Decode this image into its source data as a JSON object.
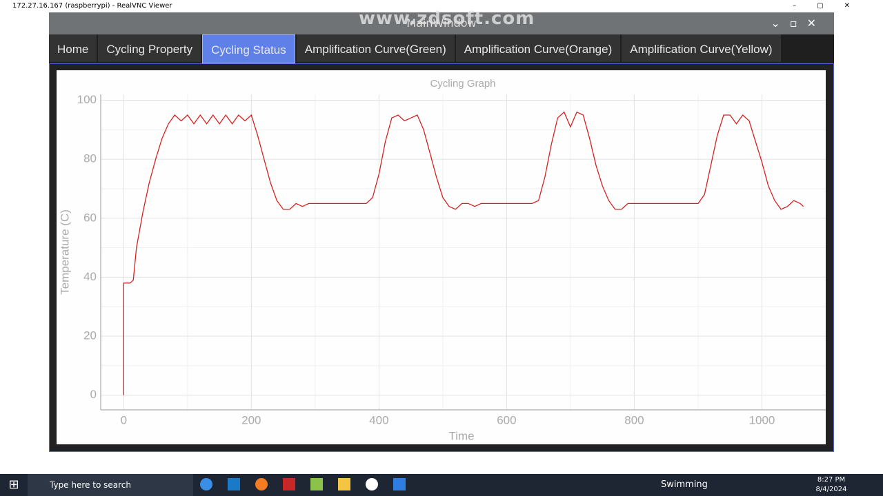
{
  "window_title": "172.27.16.167 (raspberrypi) - RealVNC Viewer",
  "app_title": "MainWindow",
  "watermark": "www.zdsoft.com",
  "tabs": [
    "Home",
    "Cycling Property",
    "Cycling Status",
    "Amplification Curve(Green)",
    "Amplification Curve(Orange)",
    "Amplification Curve(Yellow)"
  ],
  "active_tab": 2,
  "taskbar": {
    "search": "Type here to search",
    "weather": "Swimming",
    "time": "8:27 PM",
    "date": "8/4/2024"
  },
  "chart_data": {
    "type": "line",
    "title": "Cycling Graph",
    "x_label": "Time",
    "y_label": "Temperature (C)",
    "x": [
      0,
      0,
      10,
      15,
      20,
      30,
      40,
      50,
      60,
      70,
      80,
      90,
      100,
      110,
      120,
      130,
      140,
      150,
      160,
      170,
      180,
      190,
      200,
      210,
      220,
      230,
      240,
      250,
      260,
      270,
      280,
      290,
      300,
      320,
      340,
      360,
      380,
      390,
      400,
      410,
      420,
      430,
      440,
      450,
      460,
      470,
      480,
      490,
      500,
      510,
      520,
      530,
      540,
      550,
      560,
      580,
      600,
      620,
      640,
      650,
      660,
      670,
      680,
      690,
      700,
      710,
      720,
      730,
      740,
      750,
      760,
      770,
      780,
      790,
      800,
      820,
      840,
      860,
      880,
      900,
      910,
      920,
      930,
      940,
      950,
      960,
      970,
      980,
      990,
      1000,
      1010,
      1020,
      1030,
      1040,
      1050,
      1060,
      1065
    ],
    "series": [
      {
        "name": "Temperature",
        "color": "#d62020",
        "values": [
          0,
          38,
          38,
          39,
          50,
          62,
          72,
          80,
          87,
          92,
          95,
          93,
          95,
          92,
          95,
          92,
          95,
          92,
          95,
          92,
          95,
          93,
          95,
          88,
          80,
          72,
          66,
          63,
          63,
          65,
          64,
          65,
          65,
          65,
          65,
          65,
          65,
          67,
          75,
          86,
          94,
          95,
          93,
          94,
          95,
          90,
          82,
          74,
          67,
          64,
          63,
          65,
          65,
          64,
          65,
          65,
          65,
          65,
          65,
          66,
          74,
          85,
          94,
          96,
          91,
          96,
          95,
          87,
          78,
          71,
          66,
          63,
          63,
          65,
          65,
          65,
          65,
          65,
          65,
          65,
          68,
          78,
          88,
          95,
          95,
          92,
          95,
          93,
          86,
          79,
          71,
          66,
          63,
          64,
          66,
          65,
          64
        ]
      }
    ],
    "xlim": [
      -36,
      1100
    ],
    "ylim": [
      -5,
      102
    ],
    "xticks": [
      0,
      200,
      400,
      600,
      800,
      1000
    ],
    "yticks": [
      0,
      20,
      40,
      60,
      80,
      100
    ],
    "grid": true
  }
}
